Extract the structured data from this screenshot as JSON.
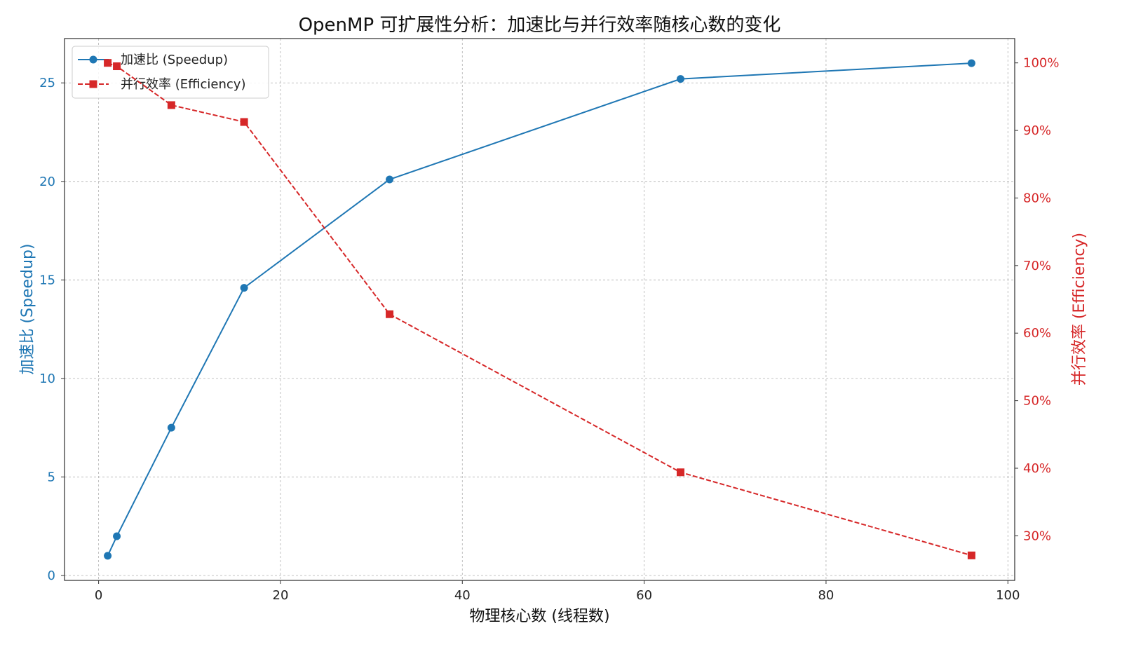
{
  "chart_data": {
    "type": "line",
    "title": "OpenMP 可扩展性分析：加速比与并行效率随核心数的变化",
    "xlabel": "物理核心数 (线程数)",
    "ylabel": "加速比 (Speedup)",
    "ylabel_right": "并行效率 (Efficiency)",
    "x": [
      1,
      2,
      8,
      16,
      32,
      64,
      96
    ],
    "series": [
      {
        "name": "加速比 (Speedup)",
        "values": [
          1.0,
          1.99,
          7.5,
          14.6,
          20.1,
          25.2,
          26.0
        ],
        "color": "#1f77b4",
        "marker": "circle",
        "dashed": false,
        "secondary_axis": false
      },
      {
        "name": "并行效率 (Efficiency)",
        "values": [
          100.0,
          99.5,
          93.75,
          91.25,
          62.8,
          39.4,
          27.1
        ],
        "color": "#d62728",
        "marker": "square",
        "dashed": true,
        "secondary_axis": true
      }
    ],
    "xlim": [
      -3.75,
      100.75
    ],
    "ylim": [
      -0.25,
      27.25
    ],
    "ylim_right": [
      23.4,
      103.6
    ],
    "x_ticks": {
      "values": [
        0,
        20,
        40,
        60,
        80,
        100
      ],
      "labels": [
        "0",
        "20",
        "40",
        "60",
        "80",
        "100"
      ]
    },
    "y_ticks": {
      "values": [
        0,
        5,
        10,
        15,
        20,
        25
      ],
      "labels": [
        "0",
        "5",
        "10",
        "15",
        "20",
        "25"
      ]
    },
    "y_right_ticks": {
      "values": [
        30,
        40,
        50,
        60,
        70,
        80,
        90,
        100
      ],
      "labels": [
        "30%",
        "40%",
        "50%",
        "60%",
        "70%",
        "80%",
        "90%",
        "100%"
      ]
    },
    "grid": true,
    "legend": {
      "placement": "top-left"
    }
  }
}
